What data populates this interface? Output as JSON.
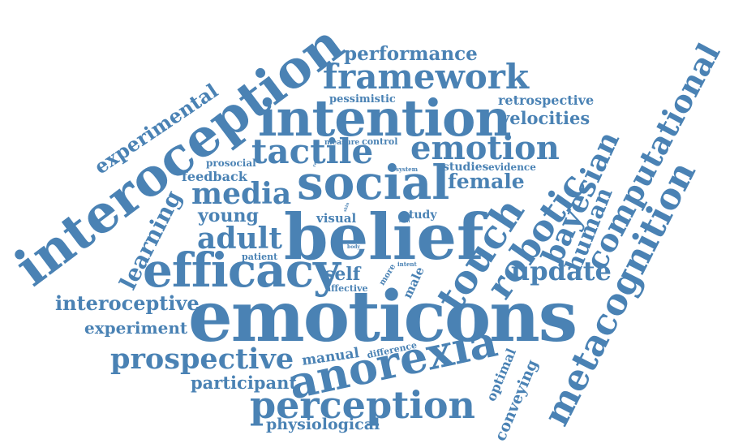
{
  "cloud": {
    "color": "#4a82b4",
    "words": [
      {
        "id": "interoception",
        "text": "interoception"
      },
      {
        "id": "emoticons",
        "text": "emoticons"
      },
      {
        "id": "belief",
        "text": "belief"
      },
      {
        "id": "intention",
        "text": "intention"
      },
      {
        "id": "social",
        "text": "social"
      },
      {
        "id": "efficacy",
        "text": "efficacy"
      },
      {
        "id": "anorexia",
        "text": "anorexia"
      },
      {
        "id": "perception",
        "text": "perception"
      },
      {
        "id": "metacognition",
        "text": "metacognition"
      },
      {
        "id": "framework",
        "text": "framework"
      },
      {
        "id": "tactile",
        "text": "tactile"
      },
      {
        "id": "emotion",
        "text": "emotion"
      },
      {
        "id": "media",
        "text": "media"
      },
      {
        "id": "touch",
        "text": "touch"
      },
      {
        "id": "robotic",
        "text": "robotic"
      },
      {
        "id": "bayesian",
        "text": "bayesian"
      },
      {
        "id": "computational",
        "text": "computational"
      },
      {
        "id": "prospective",
        "text": "prospective"
      },
      {
        "id": "update",
        "text": "update"
      },
      {
        "id": "adult",
        "text": "adult"
      },
      {
        "id": "performance",
        "text": "performance"
      },
      {
        "id": "interoceptive",
        "text": "interoceptive"
      },
      {
        "id": "experimental",
        "text": "experimental"
      },
      {
        "id": "learning",
        "text": "learning"
      },
      {
        "id": "human",
        "text": "human"
      },
      {
        "id": "experiment",
        "text": "experiment"
      },
      {
        "id": "young",
        "text": "young"
      },
      {
        "id": "participant",
        "text": "participant"
      },
      {
        "id": "physiological",
        "text": "physiological"
      },
      {
        "id": "female",
        "text": "female"
      },
      {
        "id": "velocities",
        "text": "velocities"
      },
      {
        "id": "retrospective",
        "text": "retrospective"
      },
      {
        "id": "self",
        "text": "self"
      },
      {
        "id": "manual",
        "text": "manual"
      },
      {
        "id": "conveying",
        "text": "conveying"
      },
      {
        "id": "optimal",
        "text": "optimal"
      },
      {
        "id": "feedback",
        "text": "feedback"
      },
      {
        "id": "pessimistic",
        "text": "pessimistic"
      },
      {
        "id": "visual",
        "text": "visual"
      },
      {
        "id": "study",
        "text": "study"
      },
      {
        "id": "studies",
        "text": "studies"
      },
      {
        "id": "evidence",
        "text": "evidence"
      },
      {
        "id": "prosocial",
        "text": "prosocial"
      },
      {
        "id": "male",
        "text": "male"
      },
      {
        "id": "affective",
        "text": "affective"
      },
      {
        "id": "control",
        "text": "control"
      },
      {
        "id": "measure",
        "text": "measure"
      },
      {
        "id": "patient",
        "text": "patient"
      },
      {
        "id": "difference",
        "text": "difference"
      },
      {
        "id": "more",
        "text": "more"
      },
      {
        "id": "intent",
        "text": "intent"
      },
      {
        "id": "system",
        "text": "system"
      },
      {
        "id": "skin",
        "text": "skin"
      },
      {
        "id": "local",
        "text": "local"
      },
      {
        "id": "body",
        "text": "body"
      },
      {
        "id": "rate",
        "text": "rate"
      }
    ]
  }
}
